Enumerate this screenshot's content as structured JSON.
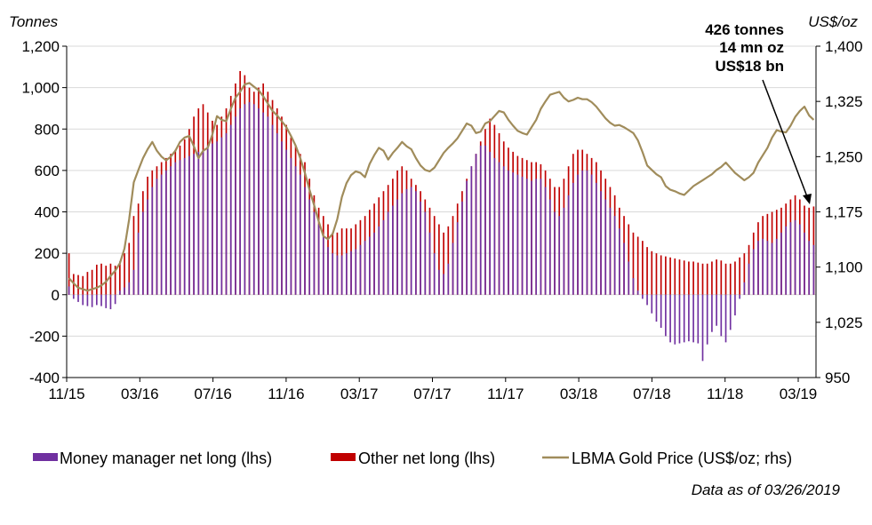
{
  "chart_data": {
    "type": "bar+line",
    "left_axis_title": "Tonnes",
    "right_axis_title": "US$/oz",
    "left_ticks": [
      "1,200",
      "1,000",
      "800",
      "600",
      "400",
      "200",
      "0",
      "-200",
      "-400"
    ],
    "right_ticks": [
      "1,400",
      "1,325",
      "1,250",
      "1,175",
      "1,100",
      "1,025",
      "950"
    ],
    "ylim_left": [
      -400,
      1200
    ],
    "ylim_right": [
      950,
      1400
    ],
    "x_tick_labels": [
      "11/15",
      "03/16",
      "07/16",
      "11/16",
      "03/17",
      "07/17",
      "11/17",
      "03/18",
      "07/18",
      "11/18",
      "03/19"
    ],
    "colors": {
      "money_manager": "#7030A0",
      "other": "#C00000",
      "gold": "#A08C5B",
      "axis": "#000000",
      "grid": "#D9D9D9"
    },
    "series": [
      {
        "name": "Money manager net long (lhs)",
        "type": "bar",
        "values": [
          40,
          -20,
          -35,
          -50,
          -55,
          -60,
          -50,
          -55,
          -65,
          -70,
          -45,
          20,
          35,
          60,
          120,
          300,
          400,
          460,
          520,
          560,
          580,
          600,
          620,
          640,
          650,
          660,
          670,
          680,
          690,
          700,
          720,
          730,
          740,
          760,
          780,
          820,
          860,
          900,
          920,
          930,
          920,
          900,
          880,
          860,
          820,
          780,
          740,
          700,
          660,
          620,
          580,
          520,
          460,
          400,
          340,
          280,
          230,
          200,
          190,
          190,
          200,
          210,
          220,
          240,
          260,
          280,
          300,
          330,
          360,
          400,
          430,
          460,
          490,
          510,
          520,
          500,
          450,
          400,
          300,
          200,
          120,
          100,
          150,
          250,
          350,
          450,
          550,
          620,
          680,
          720,
          720,
          690,
          660,
          640,
          620,
          600,
          590,
          580,
          570,
          560,
          550,
          560,
          560,
          520,
          460,
          400,
          380,
          420,
          480,
          540,
          580,
          600,
          600,
          580,
          540,
          500,
          460,
          420,
          380,
          320,
          250,
          160,
          80,
          20,
          -20,
          -50,
          -90,
          -130,
          -160,
          -200,
          -230,
          -240,
          -235,
          -230,
          -225,
          -230,
          -235,
          -320,
          -240,
          -180,
          -150,
          -200,
          -230,
          -170,
          -100,
          -20,
          60,
          150,
          220,
          260,
          270,
          260,
          250,
          270,
          300,
          330,
          350,
          360,
          340,
          300,
          260,
          240
        ]
      },
      {
        "name": "Other net long (lhs)",
        "type": "bar",
        "values": [
          200,
          100,
          95,
          90,
          110,
          120,
          145,
          150,
          140,
          150,
          140,
          160,
          200,
          250,
          380,
          440,
          500,
          570,
          600,
          620,
          640,
          660,
          680,
          700,
          720,
          750,
          800,
          860,
          900,
          920,
          880,
          840,
          820,
          860,
          900,
          960,
          1020,
          1080,
          1060,
          1000,
          980,
          1000,
          1020,
          980,
          940,
          900,
          860,
          820,
          760,
          720,
          680,
          640,
          560,
          480,
          420,
          380,
          340,
          300,
          300,
          320,
          320,
          320,
          340,
          360,
          380,
          410,
          440,
          470,
          500,
          530,
          560,
          600,
          620,
          600,
          560,
          530,
          500,
          460,
          420,
          380,
          340,
          300,
          330,
          380,
          440,
          500,
          560,
          620,
          680,
          740,
          800,
          850,
          820,
          780,
          740,
          710,
          690,
          670,
          660,
          650,
          640,
          640,
          630,
          600,
          560,
          520,
          520,
          560,
          620,
          680,
          700,
          700,
          680,
          660,
          640,
          600,
          560,
          520,
          480,
          420,
          380,
          340,
          300,
          280,
          260,
          230,
          210,
          200,
          190,
          185,
          180,
          175,
          170,
          165,
          160,
          160,
          155,
          150,
          150,
          160,
          170,
          165,
          150,
          150,
          160,
          180,
          200,
          240,
          300,
          350,
          380,
          390,
          400,
          410,
          420,
          440,
          460,
          480,
          460,
          430,
          420,
          426
        ]
      },
      {
        "name": "LBMA Gold Price (US$/oz; rhs)",
        "type": "line",
        "values": [
          1085,
          1078,
          1072,
          1070,
          1068,
          1070,
          1072,
          1075,
          1080,
          1088,
          1095,
          1105,
          1125,
          1165,
          1215,
          1232,
          1248,
          1260,
          1270,
          1258,
          1250,
          1245,
          1250,
          1258,
          1270,
          1276,
          1278,
          1264,
          1248,
          1258,
          1262,
          1280,
          1305,
          1300,
          1298,
          1315,
          1330,
          1338,
          1348,
          1350,
          1345,
          1340,
          1332,
          1322,
          1312,
          1306,
          1298,
          1290,
          1278,
          1265,
          1248,
          1228,
          1205,
          1184,
          1162,
          1142,
          1138,
          1145,
          1165,
          1195,
          1214,
          1225,
          1230,
          1228,
          1222,
          1240,
          1252,
          1262,
          1258,
          1246,
          1255,
          1262,
          1270,
          1264,
          1260,
          1248,
          1238,
          1232,
          1230,
          1235,
          1245,
          1255,
          1262,
          1268,
          1275,
          1285,
          1295,
          1292,
          1282,
          1284,
          1295,
          1298,
          1305,
          1312,
          1310,
          1300,
          1292,
          1285,
          1282,
          1280,
          1290,
          1300,
          1315,
          1325,
          1334,
          1336,
          1338,
          1330,
          1325,
          1327,
          1330,
          1328,
          1328,
          1324,
          1318,
          1310,
          1302,
          1296,
          1292,
          1293,
          1290,
          1286,
          1282,
          1272,
          1256,
          1238,
          1232,
          1226,
          1222,
          1210,
          1205,
          1203,
          1200,
          1198,
          1204,
          1210,
          1214,
          1218,
          1222,
          1226,
          1232,
          1236,
          1242,
          1235,
          1228,
          1223,
          1218,
          1222,
          1228,
          1242,
          1252,
          1262,
          1276,
          1286,
          1284,
          1283,
          1292,
          1304,
          1312,
          1318,
          1306,
          1300
        ]
      }
    ],
    "annotation": {
      "line1": "426 tonnes",
      "line2": "14 mn oz",
      "line3": "US$18 bn"
    },
    "legend": {
      "money_manager": "Money manager net long (lhs)",
      "other": "Other net long (lhs)",
      "gold": "LBMA Gold Price (US$/oz; rhs)"
    },
    "footnote": "Data as of 03/26/2019"
  }
}
